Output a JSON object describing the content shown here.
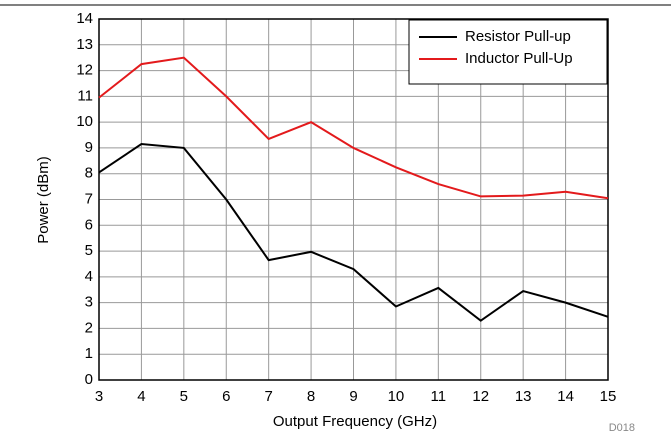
{
  "chart_data": {
    "type": "line",
    "xlabel": "Output Frequency (GHz)",
    "ylabel": "Power (dBm)",
    "note": "D018",
    "x": [
      3,
      4,
      5,
      6,
      7,
      8,
      9,
      10,
      11,
      12,
      13,
      14,
      15
    ],
    "series": [
      {
        "name": "Resistor Pull-up",
        "color": "#000000",
        "values": [
          8.05,
          9.15,
          9.0,
          7.0,
          4.65,
          4.97,
          4.3,
          2.85,
          3.57,
          2.3,
          3.45,
          3.0,
          2.45
        ]
      },
      {
        "name": "Inductor Pull-Up",
        "color": "#e31a1c",
        "values": [
          10.95,
          12.25,
          12.5,
          11.0,
          9.35,
          10.0,
          9.0,
          8.25,
          7.6,
          7.12,
          7.15,
          7.3,
          7.05
        ]
      }
    ],
    "xlim": [
      3,
      15
    ],
    "xticks": [
      3,
      4,
      5,
      6,
      7,
      8,
      9,
      10,
      11,
      12,
      13,
      14,
      15
    ],
    "ylim": [
      0,
      14
    ],
    "yticks": [
      0,
      1,
      2,
      3,
      4,
      5,
      6,
      7,
      8,
      9,
      10,
      11,
      12,
      13,
      14
    ],
    "grid": true,
    "legend": "upper right"
  }
}
